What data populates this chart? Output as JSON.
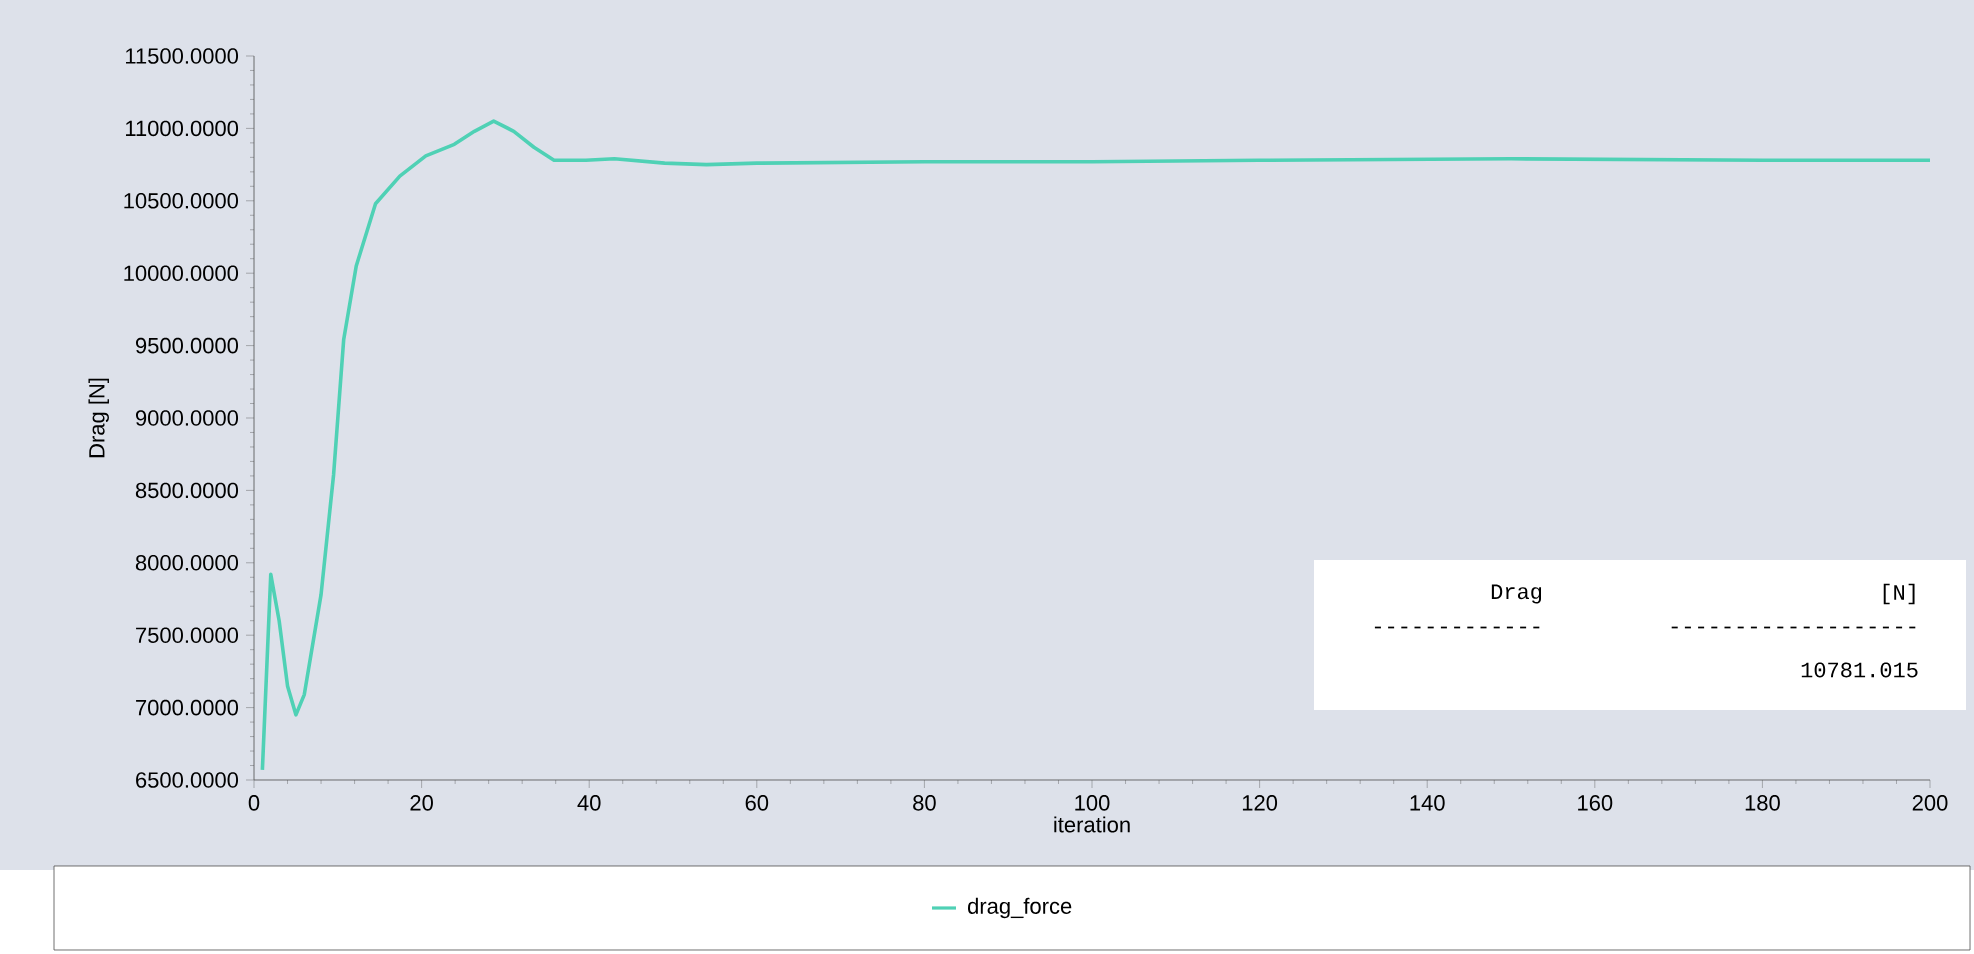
{
  "chart_data": {
    "type": "line",
    "xlabel": "iteration",
    "ylabel": "Drag [N]",
    "xlim": [
      0,
      200
    ],
    "ylim": [
      6500,
      11500
    ],
    "xticks": [
      0,
      20,
      40,
      60,
      80,
      100,
      120,
      140,
      160,
      180,
      200
    ],
    "yticks": [
      {
        "value": 6500,
        "label": "6500.0000"
      },
      {
        "value": 7000,
        "label": "7000.0000"
      },
      {
        "value": 7500,
        "label": "7500.0000"
      },
      {
        "value": 8000,
        "label": "8000.0000"
      },
      {
        "value": 8500,
        "label": "8500.0000"
      },
      {
        "value": 9000,
        "label": "9000.0000"
      },
      {
        "value": 9500,
        "label": "9500.0000"
      },
      {
        "value": 10000,
        "label": "10000.0000"
      },
      {
        "value": 10500,
        "label": "10500.0000"
      },
      {
        "value": 11000,
        "label": "11000.0000"
      },
      {
        "value": 11500,
        "label": "11500.0000"
      }
    ],
    "x": [
      1,
      2,
      3,
      4,
      5,
      6,
      8,
      9.5,
      10.7,
      12.2,
      14.5,
      17.4,
      20.5,
      23.9,
      26.3,
      28.6,
      31,
      33.4,
      35.8,
      39.6,
      43,
      49,
      54,
      60,
      80,
      100,
      120,
      150,
      180,
      200
    ],
    "series": [
      {
        "name": "drag_force",
        "color": "#4fd1b5",
        "values": [
          6570,
          7920,
          7600,
          7150,
          6950,
          7090,
          7780,
          8610,
          9540,
          10050,
          10480,
          10670,
          10810,
          10890,
          10980,
          11050,
          10980,
          10870,
          10780,
          10780,
          10790,
          10760,
          10750,
          10760,
          10770,
          10770,
          10780,
          10790,
          10780,
          10780
        ]
      }
    ],
    "grid": false,
    "legend": "bottom",
    "marker": "none",
    "line_style": "solid",
    "annotations": [
      "Drag",
      "[N]",
      "-------------",
      "-------------------",
      "10781.015"
    ]
  }
}
